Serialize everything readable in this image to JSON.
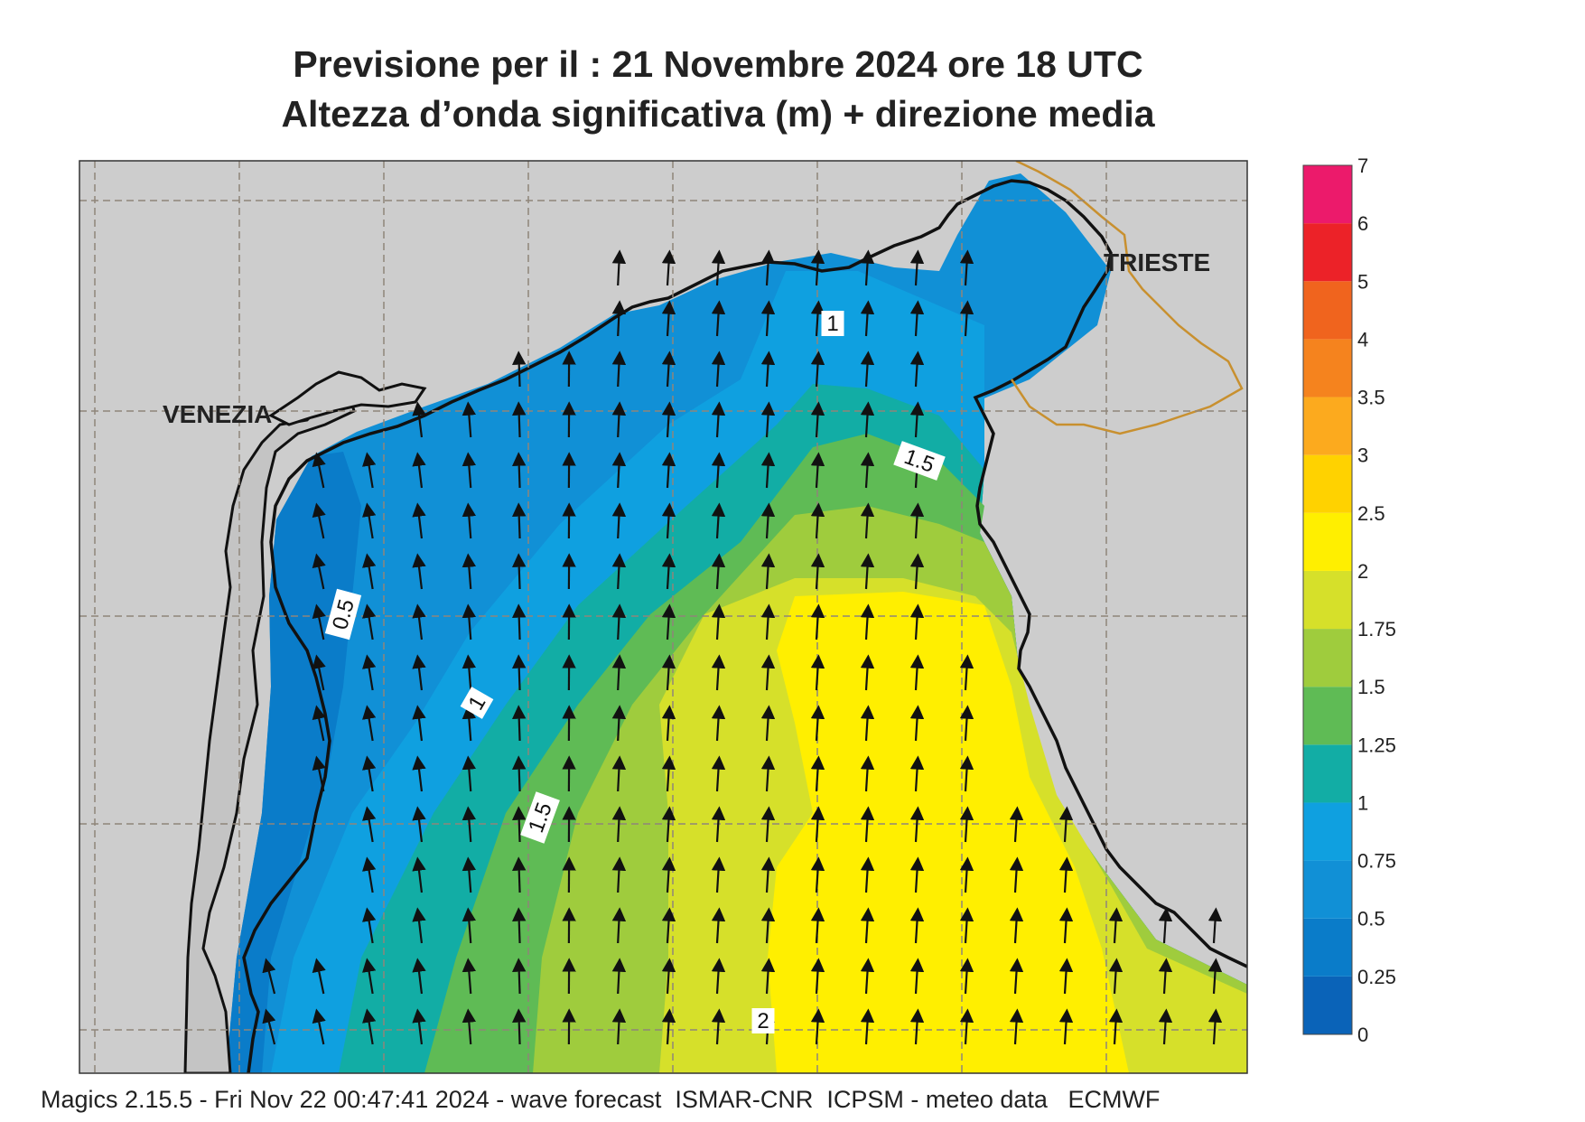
{
  "title": {
    "line1": "Previsione per il  :  21 Novembre  2024   ore 18 UTC",
    "line2": "Altezza d’onda significativa (m) + direzione media"
  },
  "places": {
    "venezia": "VENEZIA",
    "trieste": "TRIESTE"
  },
  "contour_labels": [
    "1",
    "1.5",
    "0.5",
    "1",
    "1.5",
    "2"
  ],
  "legend": {
    "ticks": [
      "0",
      "0.25",
      "0.5",
      "0.75",
      "1",
      "1.25",
      "1.5",
      "1.75",
      "2",
      "2.5",
      "3",
      "3.5",
      "4",
      "5",
      "6",
      "7"
    ],
    "colors": [
      "#0a63b8",
      "#0a7cc9",
      "#1190d6",
      "#0fa0e0",
      "#12ada5",
      "#5fbb55",
      "#9fcc3d",
      "#d6e02a",
      "#ffef00",
      "#ffd200",
      "#fcaa1e",
      "#f5831e",
      "#f0641e",
      "#ec2228",
      "#ec1a6b"
    ]
  },
  "colors": {
    "land": "#cdcdcd",
    "coast": "#111111",
    "border": "#c8902f",
    "grid": "#8f857a"
  },
  "arrow_direction": "north",
  "footer": "Magics 2.15.5 - Fri Nov 22 00:47:41 2024 - wave forecast  ISMAR-CNR  ICPSM - meteo data   ECMWF"
}
